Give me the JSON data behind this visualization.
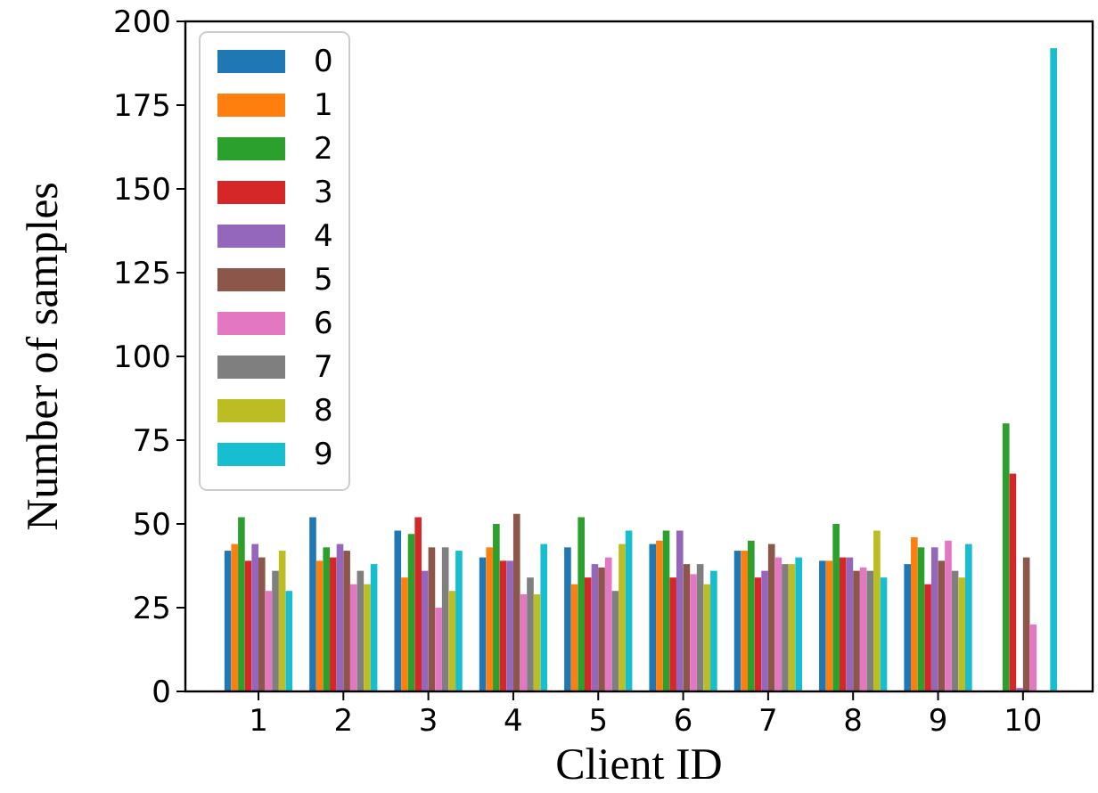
{
  "chart_data": {
    "type": "bar",
    "xlabel": "Client ID",
    "ylabel": "Number of samples",
    "categories": [
      "1",
      "2",
      "3",
      "4",
      "5",
      "6",
      "7",
      "8",
      "9",
      "10"
    ],
    "ylim": [
      0,
      200
    ],
    "yticks": [
      0,
      25,
      50,
      75,
      100,
      125,
      150,
      175,
      200
    ],
    "grid": false,
    "legend": "top left",
    "series": [
      {
        "name": "0",
        "color": "#1f77b4",
        "values": [
          42,
          52,
          48,
          40,
          43,
          44,
          42,
          39,
          38,
          0
        ]
      },
      {
        "name": "1",
        "color": "#ff7f0e",
        "values": [
          44,
          39,
          34,
          43,
          32,
          45,
          42,
          39,
          46,
          0
        ]
      },
      {
        "name": "2",
        "color": "#2ca02c",
        "values": [
          52,
          43,
          47,
          50,
          52,
          48,
          45,
          50,
          43,
          80
        ]
      },
      {
        "name": "3",
        "color": "#d62728",
        "values": [
          39,
          40,
          52,
          39,
          34,
          34,
          34,
          40,
          32,
          65
        ]
      },
      {
        "name": "4",
        "color": "#9467bd",
        "values": [
          44,
          44,
          36,
          39,
          38,
          48,
          36,
          40,
          43,
          1
        ]
      },
      {
        "name": "5",
        "color": "#8c564b",
        "values": [
          40,
          42,
          43,
          53,
          37,
          38,
          44,
          36,
          39,
          40
        ]
      },
      {
        "name": "6",
        "color": "#e377c2",
        "values": [
          30,
          32,
          25,
          29,
          40,
          35,
          40,
          37,
          45,
          20
        ]
      },
      {
        "name": "7",
        "color": "#7f7f7f",
        "values": [
          36,
          36,
          43,
          34,
          30,
          38,
          38,
          36,
          36,
          0
        ]
      },
      {
        "name": "8",
        "color": "#bcbd22",
        "values": [
          42,
          32,
          30,
          29,
          44,
          32,
          38,
          48,
          34,
          0
        ]
      },
      {
        "name": "9",
        "color": "#17becf",
        "values": [
          30,
          38,
          42,
          44,
          48,
          36,
          40,
          34,
          44,
          192
        ]
      }
    ]
  }
}
